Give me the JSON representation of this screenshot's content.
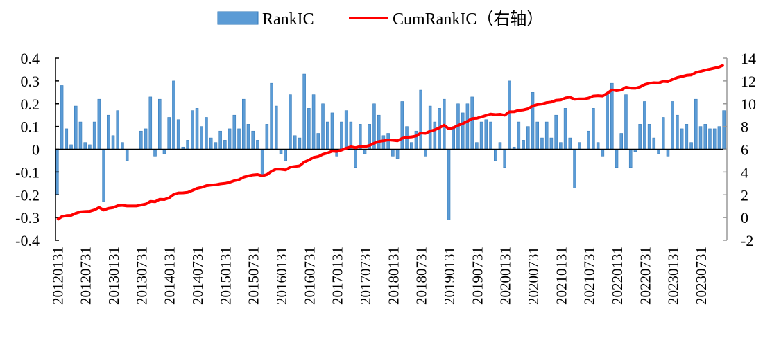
{
  "chart_data": {
    "type": "bar+line",
    "title": "",
    "legend": {
      "placement": "top-center",
      "entries": [
        "RankIC",
        "CumRankIC（右轴）"
      ]
    },
    "colors": {
      "bar": "#5b9bd5",
      "bar_edge": "#2e75b6",
      "line": "#ff0000"
    },
    "start_month": "2012-01",
    "x_tick_labels": [
      "20120131",
      "20120731",
      "20130131",
      "20130731",
      "20140131",
      "20140731",
      "20150131",
      "20150731",
      "20160131",
      "20160731",
      "20170131",
      "20170731",
      "20180131",
      "20180731",
      "20190131",
      "20190731",
      "20200131",
      "20200731",
      "20210131",
      "20210731",
      "20220131",
      "20220731",
      "20230131",
      "20230731"
    ],
    "y_left": {
      "ylim": [
        -0.4,
        0.4
      ],
      "ticks": [
        "0.4",
        "0.3",
        "0.2",
        "0.1",
        "0",
        "-0.1",
        "-0.2",
        "-0.3",
        "-0.4"
      ]
    },
    "y_right": {
      "ylim": [
        -2,
        14
      ],
      "ticks": [
        "14",
        "12",
        "10",
        "8",
        "6",
        "4",
        "2",
        "0",
        "-2"
      ]
    },
    "series": [
      {
        "name": "RankIC",
        "type": "bar",
        "axis": "left",
        "values": [
          -0.2,
          0.28,
          0.09,
          0.02,
          0.19,
          0.12,
          0.03,
          0.02,
          0.12,
          0.22,
          -0.23,
          0.15,
          0.06,
          0.17,
          0.03,
          -0.05,
          0.0,
          0.0,
          0.08,
          0.09,
          0.23,
          -0.03,
          0.22,
          -0.02,
          0.14,
          0.3,
          0.13,
          0.01,
          0.04,
          0.17,
          0.18,
          0.1,
          0.14,
          0.05,
          0.03,
          0.08,
          0.04,
          0.09,
          0.15,
          0.09,
          0.22,
          0.11,
          0.08,
          0.04,
          -0.11,
          0.11,
          0.29,
          0.19,
          -0.02,
          -0.05,
          0.24,
          0.06,
          0.05,
          0.33,
          0.18,
          0.24,
          0.07,
          0.2,
          0.12,
          0.16,
          -0.03,
          0.12,
          0.17,
          0.12,
          -0.08,
          0.11,
          -0.02,
          0.11,
          0.2,
          0.15,
          0.06,
          0.07,
          -0.03,
          -0.04,
          0.21,
          0.1,
          0.03,
          0.08,
          0.26,
          -0.03,
          0.19,
          0.12,
          0.18,
          0.22,
          -0.31,
          0.1,
          0.2,
          0.16,
          0.2,
          0.23,
          0.03,
          0.12,
          0.13,
          0.12,
          -0.05,
          0.03,
          -0.08,
          0.3,
          0.01,
          0.12,
          0.04,
          0.1,
          0.25,
          0.12,
          0.05,
          0.12,
          0.05,
          0.15,
          0.03,
          0.18,
          0.05,
          -0.17,
          0.03,
          0.0,
          0.08,
          0.18,
          0.03,
          -0.03,
          0.25,
          0.29,
          -0.08,
          0.07,
          0.24,
          -0.08,
          -0.01,
          0.11,
          0.21,
          0.11,
          0.05,
          -0.02,
          0.14,
          -0.03,
          0.21,
          0.15,
          0.09,
          0.11,
          0.03,
          0.22,
          0.1,
          0.11,
          0.09,
          0.09,
          0.1,
          0.17
        ]
      },
      {
        "name": "CumRankIC（右轴）",
        "type": "line",
        "axis": "right",
        "values": [
          -0.2,
          0.08,
          0.17,
          0.19,
          0.38,
          0.5,
          0.53,
          0.55,
          0.67,
          0.89,
          0.66,
          0.81,
          0.87,
          1.04,
          1.07,
          1.02,
          1.02,
          1.02,
          1.1,
          1.19,
          1.42,
          1.39,
          1.61,
          1.59,
          1.73,
          2.03,
          2.16,
          2.17,
          2.21,
          2.38,
          2.56,
          2.66,
          2.8,
          2.85,
          2.88,
          2.96,
          3.0,
          3.09,
          3.24,
          3.33,
          3.55,
          3.66,
          3.74,
          3.78,
          3.67,
          3.78,
          4.07,
          4.26,
          4.24,
          4.19,
          4.43,
          4.49,
          4.54,
          4.87,
          5.05,
          5.29,
          5.36,
          5.56,
          5.68,
          5.84,
          5.81,
          5.93,
          6.1,
          6.22,
          6.14,
          6.25,
          6.23,
          6.34,
          6.54,
          6.69,
          6.75,
          6.82,
          6.79,
          6.75,
          6.96,
          7.06,
          7.09,
          7.17,
          7.43,
          7.4,
          7.59,
          7.71,
          7.89,
          8.11,
          7.8,
          7.9,
          8.1,
          8.26,
          8.46,
          8.69,
          8.72,
          8.84,
          8.97,
          9.09,
          9.04,
          9.07,
          8.99,
          9.29,
          9.3,
          9.42,
          9.46,
          9.56,
          9.81,
          9.93,
          9.98,
          10.1,
          10.15,
          10.3,
          10.33,
          10.51,
          10.56,
          10.39,
          10.42,
          10.42,
          10.5,
          10.68,
          10.71,
          10.68,
          10.93,
          11.22,
          11.14,
          11.21,
          11.45,
          11.37,
          11.36,
          11.47,
          11.68,
          11.79,
          11.84,
          11.82,
          11.96,
          11.93,
          12.14,
          12.29,
          12.38,
          12.49,
          12.52,
          12.74,
          12.84,
          12.95,
          13.04,
          13.13,
          13.23,
          13.4
        ]
      }
    ],
    "xlabel": "",
    "ylabel": "",
    "grid": false
  }
}
